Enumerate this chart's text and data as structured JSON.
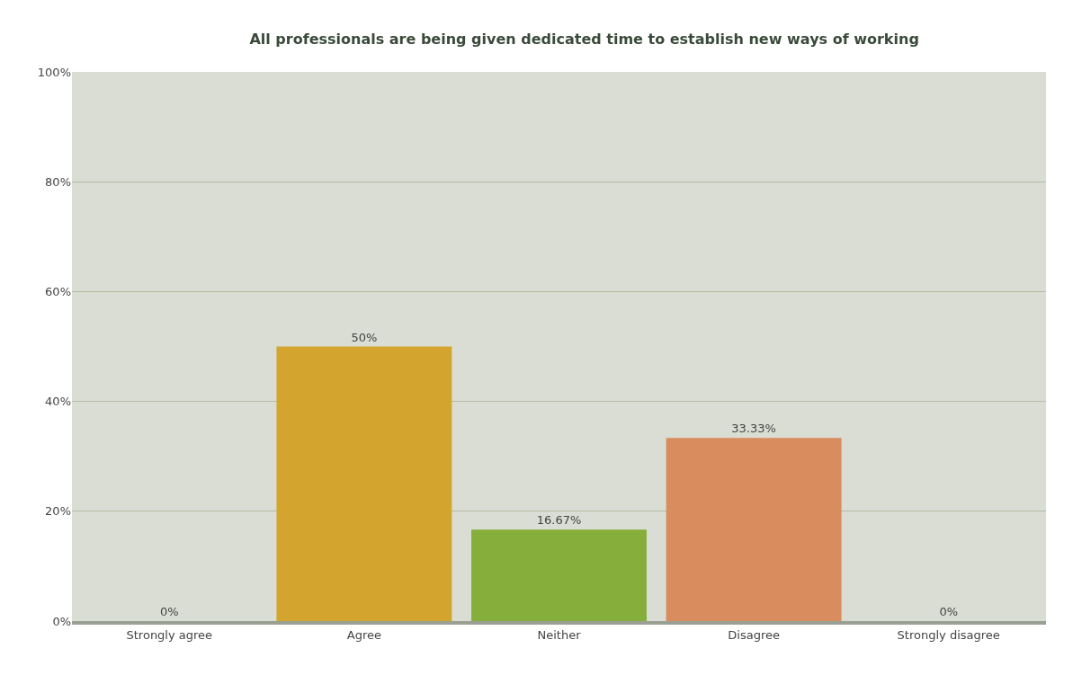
{
  "chart_data": {
    "type": "bar",
    "title": "All professionals are being given dedicated time to establish new ways of working",
    "categories": [
      "Strongly agree",
      "Agree",
      "Neither",
      "Disagree",
      "Strongly disagree"
    ],
    "values": [
      0,
      50,
      16.67,
      33.33,
      0
    ],
    "colors": [
      "#a9c9e6",
      "#d4a52e",
      "#86ae3a",
      "#d98c5e",
      "#3aa3a3"
    ],
    "value_labels": [
      "0%",
      "50%",
      "16.67%",
      "33.33%",
      "0%"
    ],
    "ylim": [
      0,
      100
    ],
    "yticks": [
      {
        "value": 0,
        "label": "0%"
      },
      {
        "value": 20,
        "label": "20%"
      },
      {
        "value": 40,
        "label": "40%"
      },
      {
        "value": 60,
        "label": "60%"
      },
      {
        "value": 80,
        "label": "80%"
      },
      {
        "value": 100,
        "label": "100%"
      }
    ],
    "grid": "y"
  }
}
